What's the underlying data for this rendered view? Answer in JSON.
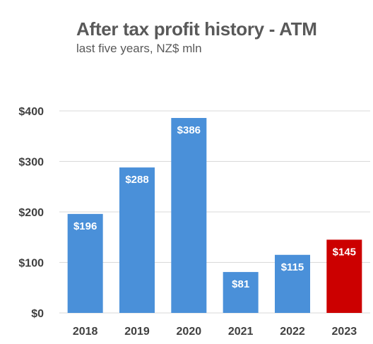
{
  "chart_data": {
    "type": "bar",
    "title": "After tax profit history - ATM",
    "subtitle": "last five years, NZ$ mln",
    "categories": [
      "2018",
      "2019",
      "2020",
      "2021",
      "2022",
      "2023"
    ],
    "values": [
      196,
      288,
      386,
      81,
      115,
      145
    ],
    "data_labels": [
      "$196",
      "$288",
      "$386",
      "$81",
      "$115",
      "$145"
    ],
    "yticks": [
      0,
      100,
      200,
      300,
      400
    ],
    "ytick_labels": [
      "$0",
      "$100",
      "$200",
      "$300",
      "$400"
    ],
    "ylim": [
      0,
      400
    ],
    "grid": true,
    "bar_colors": [
      "#4a90d9",
      "#4a90d9",
      "#4a90d9",
      "#4a90d9",
      "#4a90d9",
      "#cc0000"
    ],
    "grid_color": "#d9d9d9"
  }
}
